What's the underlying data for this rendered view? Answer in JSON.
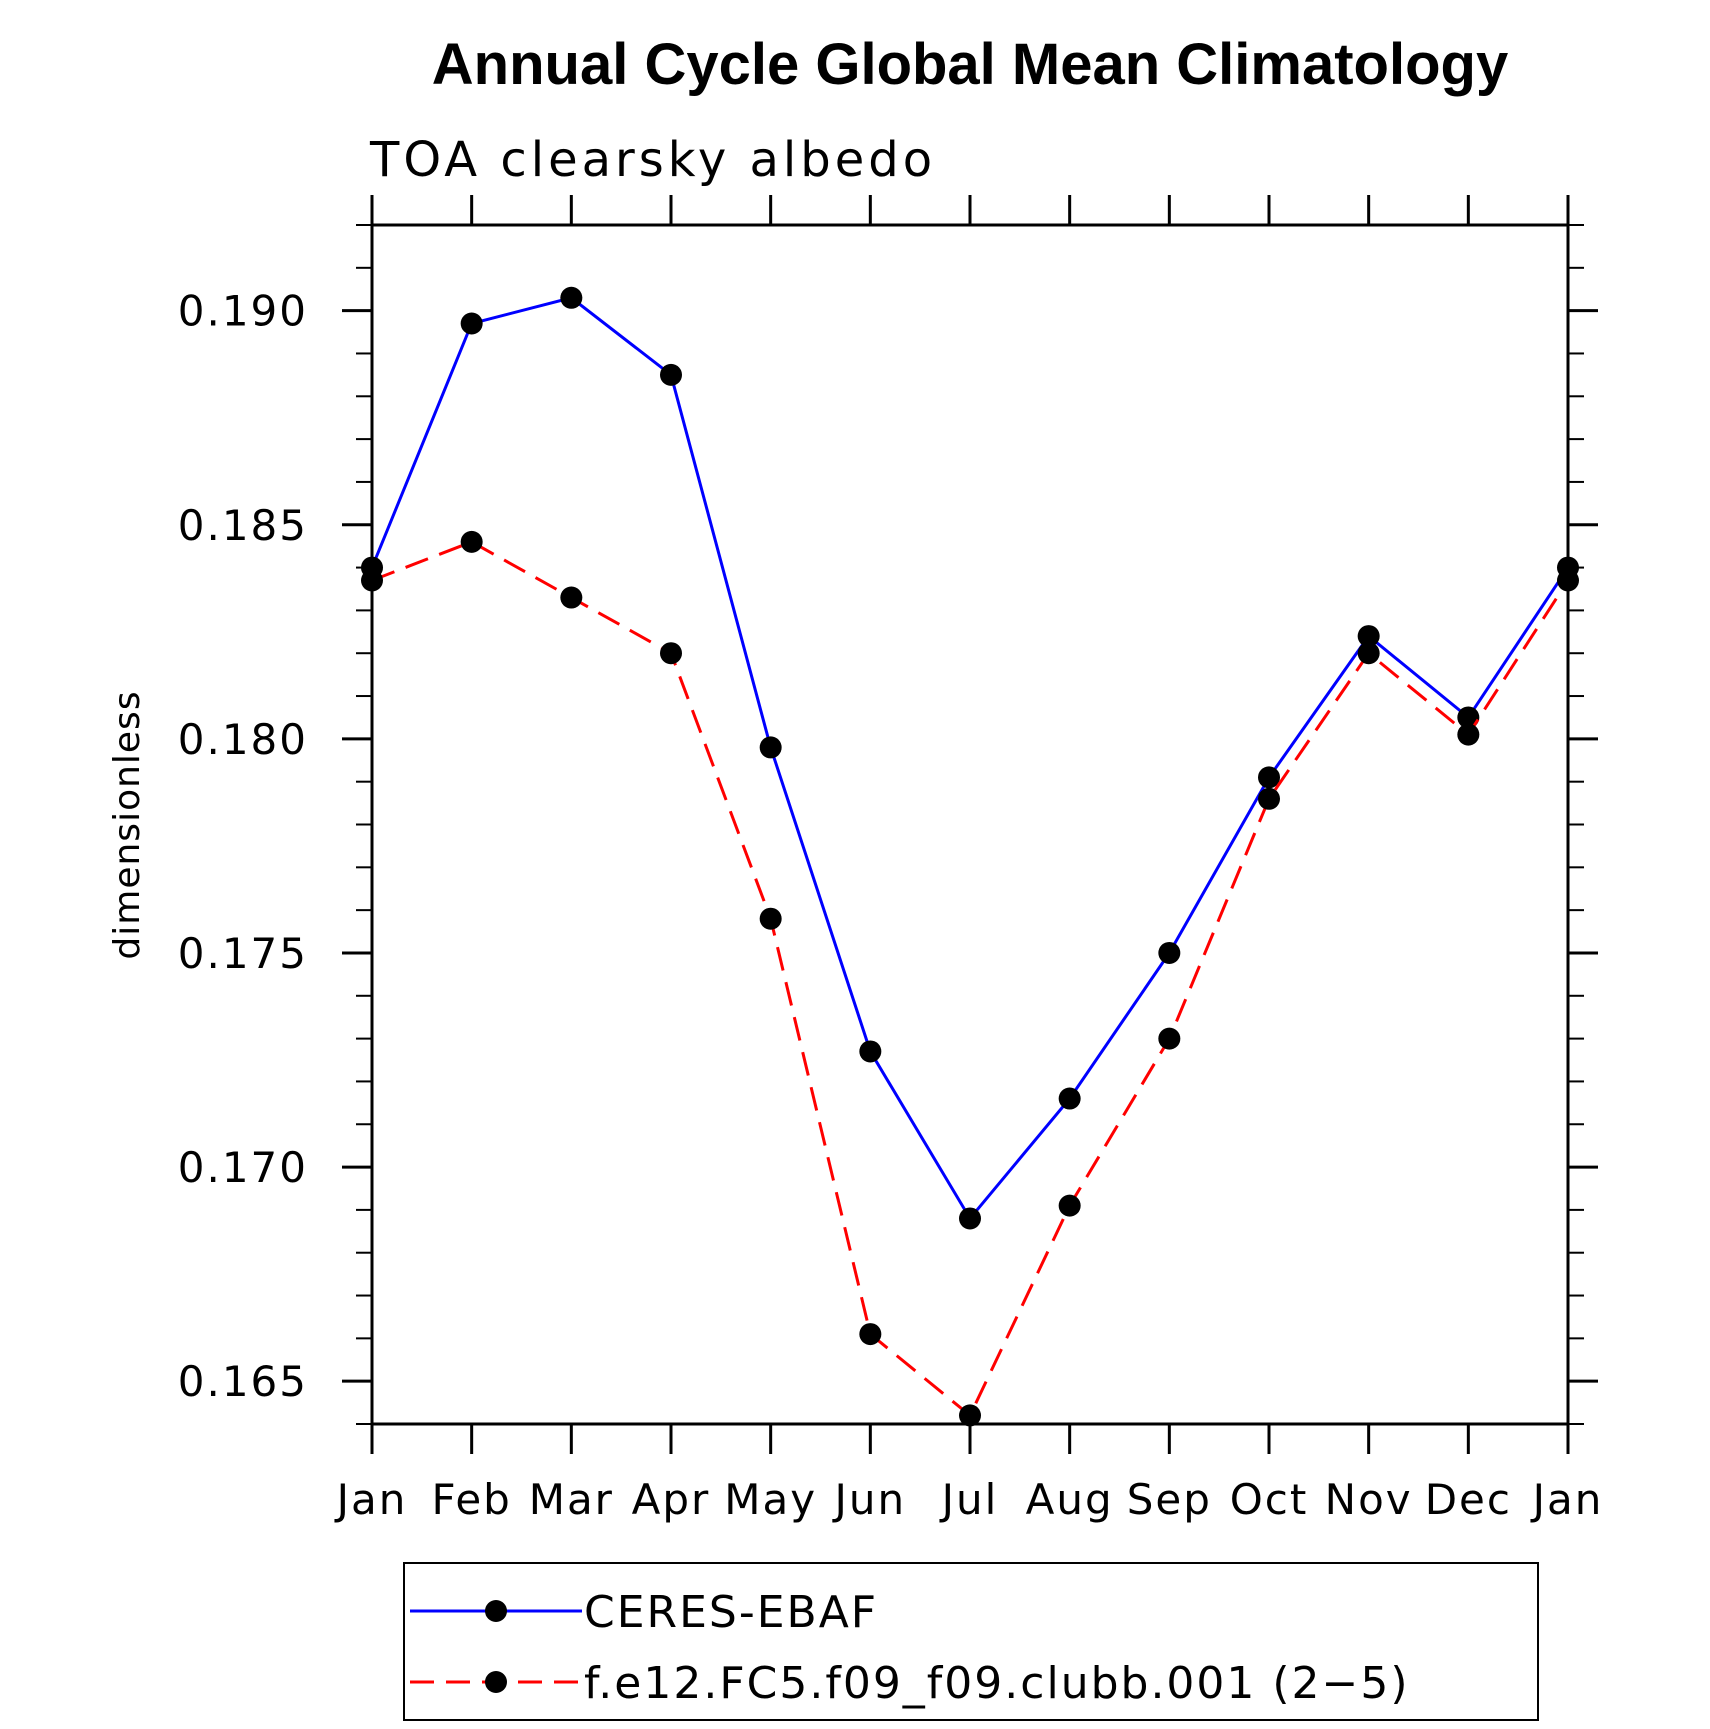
{
  "chart_data": {
    "type": "line",
    "title": "Annual Cycle Global Mean Climatology",
    "subtitle": "TOA clearsky albedo",
    "xlabel": "",
    "ylabel": "dimensionless",
    "categories": [
      "Jan",
      "Feb",
      "Mar",
      "Apr",
      "May",
      "Jun",
      "Jul",
      "Aug",
      "Sep",
      "Oct",
      "Nov",
      "Dec",
      "Jan"
    ],
    "ylim": [
      0.164,
      0.192
    ],
    "yticks": [
      "0.165",
      "0.170",
      "0.175",
      "0.180",
      "0.185",
      "0.190"
    ],
    "legend_position": "bottom",
    "series": [
      {
        "name": "CERES-EBAF",
        "color": "#0000ff",
        "dash": "solid",
        "marker": "filled-circle",
        "values": [
          0.184,
          0.1897,
          0.1903,
          0.1885,
          0.1798,
          0.1727,
          0.1688,
          0.1716,
          0.175,
          0.1791,
          0.1824,
          0.1805,
          0.184
        ]
      },
      {
        "name": "f.e12.FC5.f09_f09.clubb.001 (2−5)",
        "color": "#ff0000",
        "dash": "dashed",
        "marker": "filled-circle",
        "values": [
          0.1837,
          0.1846,
          0.1833,
          0.182,
          0.1758,
          0.1661,
          0.1642,
          0.1691,
          0.173,
          0.1786,
          0.182,
          0.1801,
          0.1837
        ]
      }
    ]
  }
}
